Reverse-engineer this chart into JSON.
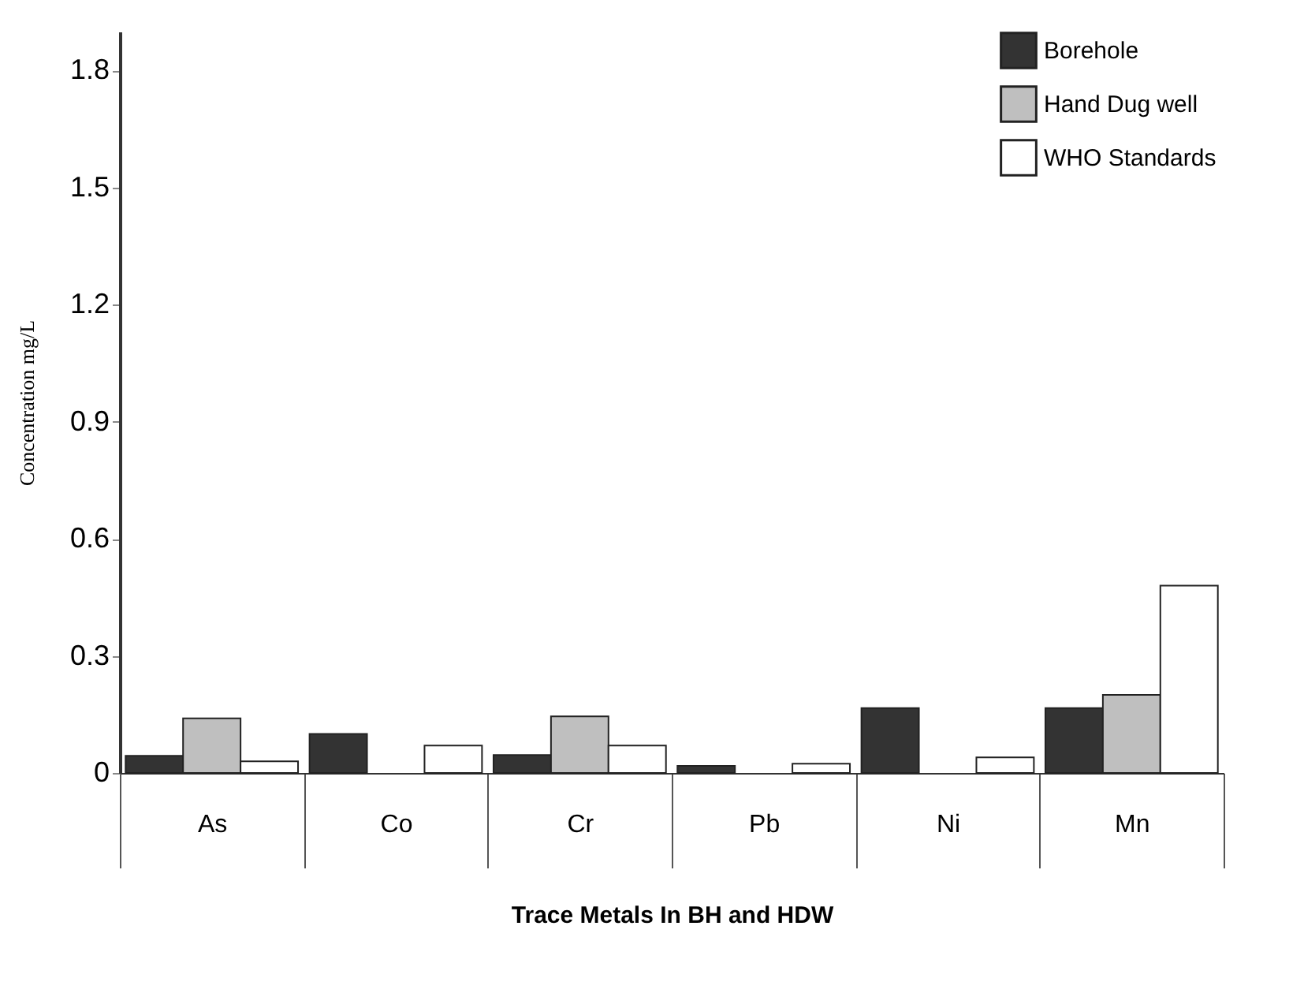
{
  "chart_data": {
    "type": "bar",
    "xlabel": "Trace Metals In BH and HDW",
    "ylabel": "Concentration mg/L",
    "categories": [
      "As",
      "Co",
      "Cr",
      "Pb",
      "Ni",
      "Mn"
    ],
    "series": [
      {
        "name": "Borehole",
        "color": "#333333",
        "values": [
          0.044,
          0.1,
          0.046,
          0.018,
          0.166,
          0.166
        ]
      },
      {
        "name": "Hand Dug well",
        "color": "#bfbfbf",
        "values": [
          0.14,
          null,
          0.145,
          null,
          null,
          0.2
        ]
      },
      {
        "name": "WHO  Standards",
        "color": "#ffffff",
        "values": [
          0.03,
          0.07,
          0.07,
          0.024,
          0.04,
          0.48
        ]
      }
    ],
    "ylim": [
      0,
      1.9
    ],
    "yticks": [
      0,
      0.3,
      0.6,
      0.9,
      1.2,
      1.5,
      1.8
    ],
    "grid": false,
    "legend": "top right"
  }
}
